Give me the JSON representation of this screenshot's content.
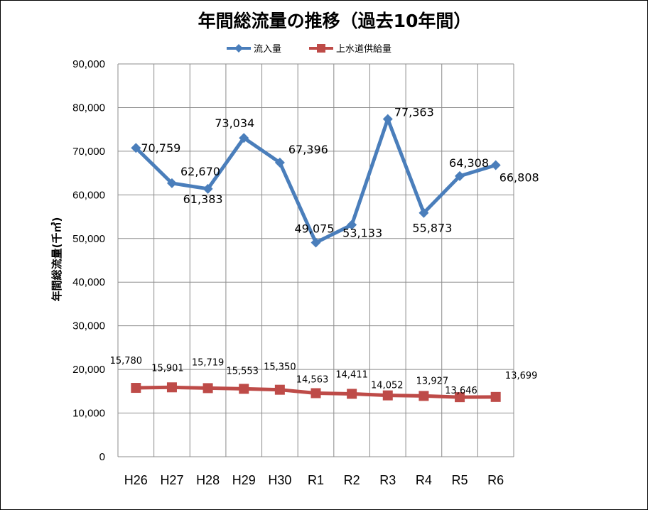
{
  "chart_data": {
    "type": "line",
    "title": "年間総流量の推移（過去10年間）",
    "ylabel": "年間総流量(千㎥)",
    "xlabel": "",
    "ylim": [
      0,
      90000
    ],
    "yticks": [
      0,
      10000,
      20000,
      30000,
      40000,
      50000,
      60000,
      70000,
      80000,
      90000
    ],
    "ytick_labels": [
      "0",
      "10,000",
      "20,000",
      "30,000",
      "40,000",
      "50,000",
      "60,000",
      "70,000",
      "80,000",
      "90,000"
    ],
    "grid": true,
    "legend_position": "top",
    "categories": [
      "H26",
      "H27",
      "H28",
      "H29",
      "H30",
      "R1",
      "R2",
      "R3",
      "R4",
      "R5",
      "R6"
    ],
    "series": [
      {
        "name": "流入量",
        "color": "#4A7EBB",
        "marker": "diamond",
        "values": [
          70759,
          62670,
          61383,
          73034,
          67396,
          49075,
          53133,
          77363,
          55873,
          64308,
          66808
        ],
        "labels": [
          "70,759",
          "62,670",
          "61,383",
          "73,034",
          "67,396",
          "49,075",
          "53,133",
          "77,363",
          "55,873",
          "64,308",
          "66,808"
        ]
      },
      {
        "name": "上水道供給量",
        "color": "#BE4B48",
        "marker": "square",
        "values": [
          15780,
          15901,
          15719,
          15553,
          15350,
          14563,
          14411,
          14052,
          13927,
          13646,
          13699
        ],
        "labels": [
          "15,780",
          "15,901",
          "15,719",
          "15,553",
          "15,350",
          "14,563",
          "14,411",
          "14,052",
          "13,927",
          "13,646",
          "13,699"
        ]
      }
    ]
  }
}
